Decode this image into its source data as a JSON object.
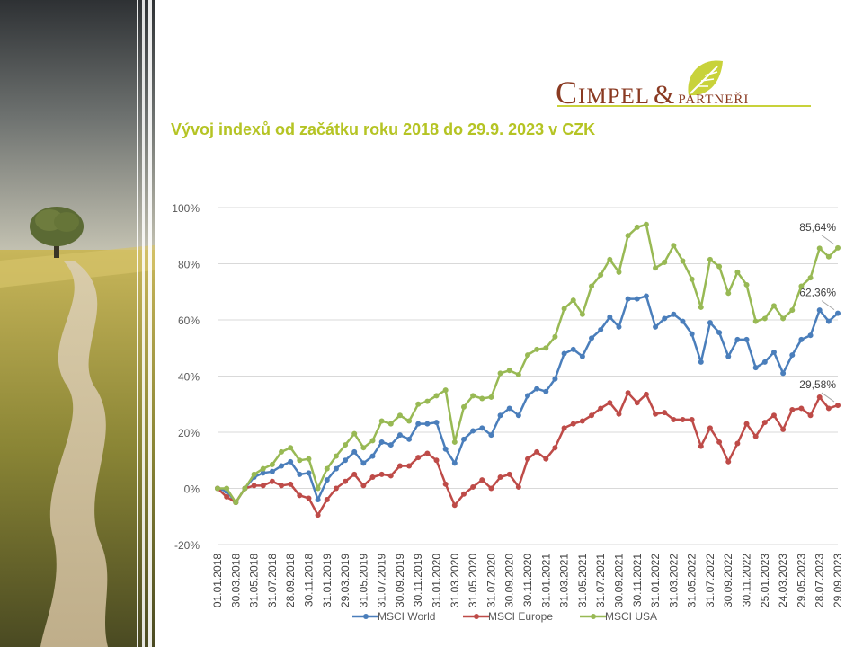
{
  "header": {
    "logo_main": "Cimpel",
    "logo_amp": "&",
    "logo_sub": "partneři",
    "title": "Vývoj indexů od začátku roku 2018 do 29.9. 2023 v CZK"
  },
  "colors": {
    "world": "#4a7ebb",
    "europe": "#be4b48",
    "usa": "#98b954",
    "title": "#b5c424",
    "logo_text": "#8a3a22",
    "logo_accent": "#c8d23a"
  },
  "chart_data": {
    "type": "line",
    "ylim": [
      -20,
      100
    ],
    "yticks": [
      "-20%",
      "0%",
      "20%",
      "40%",
      "60%",
      "80%",
      "100%"
    ],
    "grid": true,
    "legend_position": "bottom",
    "x_labels": [
      "01.01.2018",
      "30.03.2018",
      "31.05.2018",
      "31.07.2018",
      "28.09.2018",
      "30.11.2018",
      "31.01.2019",
      "29.03.2019",
      "31.05.2019",
      "31.07.2019",
      "30.09.2019",
      "30.11.2019",
      "31.01.2020",
      "31.03.2020",
      "31.05.2020",
      "31.07.2020",
      "30.09.2020",
      "30.11.2020",
      "31.01.2021",
      "31.03.2021",
      "31.05.2021",
      "31.07.2021",
      "30.09.2021",
      "30.11.2021",
      "31.01.2022",
      "31.03.2022",
      "31.05.2022",
      "31.07.2022",
      "30.09.2022",
      "30.11.2022",
      "25.01.2023",
      "24.03.2023",
      "29.05.2023",
      "28.07.2023",
      "29.09.2023"
    ],
    "series": [
      {
        "name": "MSCI World",
        "color_key": "world",
        "values": [
          0,
          -1,
          -5,
          0,
          4,
          5.5,
          6,
          8,
          9.5,
          5,
          5.5,
          -4,
          3,
          7,
          10,
          13,
          9,
          11.5,
          16.5,
          15.5,
          19,
          17.5,
          23,
          23,
          23.5,
          14,
          9,
          17.5,
          20.5,
          21.5,
          19,
          26,
          28.5,
          26,
          33,
          35.5,
          34.5,
          39,
          48,
          49.5,
          47,
          53.5,
          56.5,
          61,
          57.5,
          67.5,
          67.5,
          68.5,
          57.5,
          60.5,
          62,
          59.5,
          55,
          45,
          59,
          55.5,
          47,
          53,
          53,
          43,
          45,
          48.5,
          41,
          47.5,
          53,
          54.5,
          63.5,
          59.5,
          62.36
        ],
        "last_label": "62,36%"
      },
      {
        "name": "MSCI Europe",
        "color_key": "europe",
        "values": [
          0,
          -3,
          -5,
          0,
          1,
          1,
          2.5,
          1,
          1.5,
          -2.5,
          -3.5,
          -9.5,
          -4,
          0,
          2.5,
          5,
          1,
          4,
          5,
          4.5,
          8,
          8,
          11,
          12.5,
          10,
          1.5,
          -6,
          -2,
          0.5,
          3,
          0,
          4,
          5,
          0.5,
          10.5,
          13,
          10.5,
          14.5,
          21.5,
          23,
          24,
          26,
          28.5,
          30.5,
          26.5,
          34,
          30.5,
          33.5,
          26.5,
          27,
          24.5,
          24.5,
          24.5,
          15,
          21.5,
          16.5,
          9.5,
          16,
          23,
          18.5,
          23.5,
          26,
          21,
          28,
          28.5,
          26,
          32.5,
          28.5,
          29.58
        ],
        "last_label": "29,58%"
      },
      {
        "name": "MSCI USA",
        "color_key": "usa",
        "values": [
          0,
          0,
          -5,
          0,
          5,
          7,
          8.5,
          13,
          14.5,
          10,
          10.5,
          0,
          7,
          11.5,
          15.5,
          19.5,
          14.5,
          17,
          24,
          23,
          26,
          24,
          30,
          31,
          33,
          35,
          16.5,
          29,
          33,
          32,
          32.5,
          41,
          42,
          40.5,
          47.5,
          49.5,
          50,
          54,
          64,
          67,
          62,
          72,
          76,
          81.5,
          77,
          90,
          93,
          94,
          78.5,
          80.5,
          86.5,
          81,
          74.5,
          64.5,
          81.5,
          79,
          69.5,
          77,
          72.5,
          59.5,
          60.5,
          65,
          60.5,
          63.5,
          72,
          75,
          85.5,
          82.5,
          85.64
        ],
        "last_label": "85,64%"
      }
    ]
  }
}
